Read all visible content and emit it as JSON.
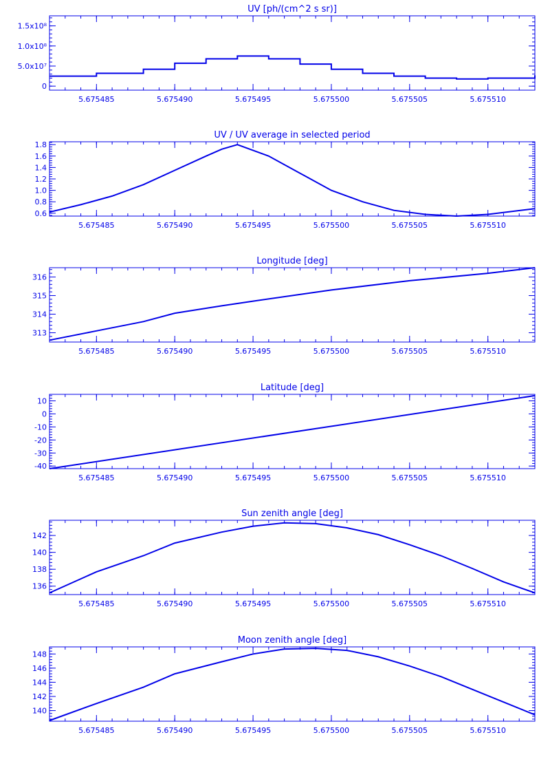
{
  "colors": {
    "ink": "#0000e8",
    "background": "#ffffff"
  },
  "x_axis": {
    "range": [
      5.675482,
      5.675513
    ],
    "ticks": [
      5.675485,
      5.67549,
      5.675495,
      5.6755,
      5.675505,
      5.67551
    ],
    "tick_labels": [
      "5.675485",
      "5.675490",
      "5.675495",
      "5.675500",
      "5.675505",
      "5.675510"
    ]
  },
  "chart_data": [
    {
      "type": "line",
      "title": "UV [ph/(cm^2 s sr)]",
      "ylim": [
        -10000000,
        175000000
      ],
      "yticks": [
        0,
        50000000,
        100000000,
        150000000
      ],
      "ytick_labels": [
        "0",
        "5.0x10⁷",
        "1.0x10⁸",
        "1.5x10⁸"
      ],
      "step": true,
      "x": [
        5.675482,
        5.675485,
        5.675488,
        5.67549,
        5.675492,
        5.675494,
        5.675496,
        5.675498,
        5.6755,
        5.675502,
        5.675504,
        5.675506,
        5.675508,
        5.67551,
        5.675513
      ],
      "y": [
        25000000,
        32000000,
        42000000,
        57000000,
        68000000,
        75000000,
        68000000,
        55000000,
        42000000,
        32000000,
        25000000,
        20000000,
        18000000,
        20000000,
        27000000
      ]
    },
    {
      "type": "line",
      "title": "UV / UV average in selected period",
      "ylim": [
        0.55,
        1.85
      ],
      "yticks": [
        0.6,
        0.8,
        1.0,
        1.2,
        1.4,
        1.6,
        1.8
      ],
      "ytick_labels": [
        "0.6",
        "0.8",
        "1.0",
        "1.2",
        "1.4",
        "1.6",
        "1.8"
      ],
      "x": [
        5.675482,
        5.675484,
        5.675486,
        5.675488,
        5.67549,
        5.675492,
        5.675493,
        5.675494,
        5.675496,
        5.675498,
        5.6755,
        5.675502,
        5.675504,
        5.675506,
        5.675508,
        5.67551,
        5.675513
      ],
      "y": [
        0.62,
        0.75,
        0.9,
        1.1,
        1.35,
        1.6,
        1.72,
        1.8,
        1.6,
        1.3,
        1.0,
        0.8,
        0.65,
        0.58,
        0.55,
        0.58,
        0.68
      ]
    },
    {
      "type": "line",
      "title": "Longitude [deg]",
      "ylim": [
        312.5,
        316.5
      ],
      "yticks": [
        313,
        314,
        315,
        316
      ],
      "ytick_labels": [
        "313",
        "314",
        "315",
        "316"
      ],
      "x": [
        5.675482,
        5.675485,
        5.675488,
        5.67549,
        5.675493,
        5.675495,
        5.6755,
        5.675505,
        5.67551,
        5.675513
      ],
      "y": [
        312.6,
        313.1,
        313.6,
        314.05,
        314.45,
        314.7,
        315.3,
        315.8,
        316.2,
        316.5
      ]
    },
    {
      "type": "line",
      "title": "Latitude [deg]",
      "ylim": [
        -42,
        15
      ],
      "yticks": [
        -40,
        -30,
        -20,
        -10,
        0,
        10
      ],
      "ytick_labels": [
        "-40",
        "-30",
        "-20",
        "-10",
        "0",
        "10"
      ],
      "x": [
        5.675482,
        5.675513
      ],
      "y": [
        -42,
        14
      ]
    },
    {
      "type": "line",
      "title": "Sun zenith angle [deg]",
      "ylim": [
        135,
        143.8
      ],
      "yticks": [
        136,
        138,
        140,
        142
      ],
      "ytick_labels": [
        "136",
        "138",
        "140",
        "142"
      ],
      "x": [
        5.675482,
        5.675485,
        5.675488,
        5.67549,
        5.675493,
        5.675495,
        5.675497,
        5.675499,
        5.675501,
        5.675503,
        5.675505,
        5.675507,
        5.675509,
        5.675511,
        5.675513
      ],
      "y": [
        135.2,
        137.7,
        139.6,
        141.1,
        142.4,
        143.1,
        143.5,
        143.4,
        142.9,
        142.1,
        140.9,
        139.6,
        138.1,
        136.5,
        135.2
      ]
    },
    {
      "type": "line",
      "title": "Moon zenith angle [deg]",
      "ylim": [
        138.5,
        149
      ],
      "yticks": [
        140,
        142,
        144,
        146,
        148
      ],
      "ytick_labels": [
        "140",
        "142",
        "144",
        "146",
        "148"
      ],
      "x": [
        5.675482,
        5.675485,
        5.675488,
        5.67549,
        5.675493,
        5.675495,
        5.675497,
        5.675499,
        5.675501,
        5.675503,
        5.675505,
        5.675507,
        5.675509,
        5.675511,
        5.675513
      ],
      "y": [
        138.6,
        141.0,
        143.3,
        145.2,
        146.9,
        148.0,
        148.7,
        148.8,
        148.5,
        147.6,
        146.3,
        144.8,
        143.0,
        141.2,
        139.4
      ]
    }
  ]
}
